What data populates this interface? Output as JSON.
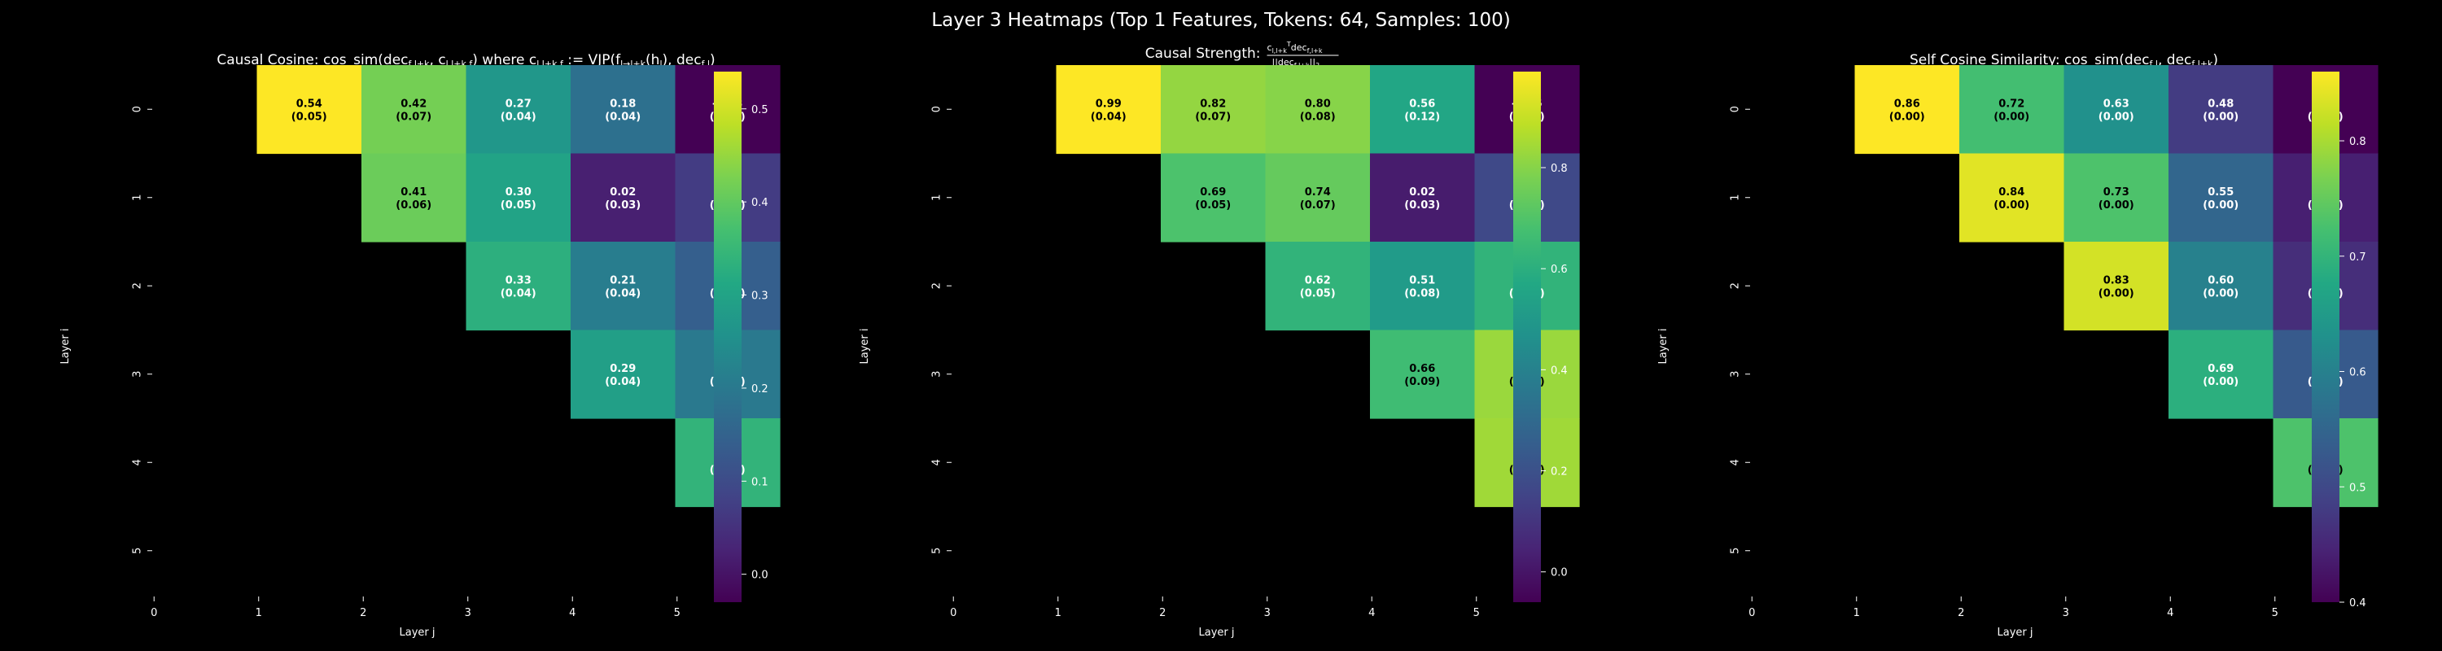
{
  "figure_title": "Layer 3 Heatmaps (Top 1 Features, Tokens: 64, Samples: 100)",
  "chart_data": [
    {
      "type": "heatmap",
      "title": "Causal Cosine: cos_sim(dec_{f,l+k}, c_{l,l+k,f}) where c_{l,l+k,f} := VJP(f_{l→l+k}(h_l), dec_{f,l})",
      "title_parts": [
        {
          "t": "Causal Cosine: cos_sim(dec",
          "s": ""
        },
        {
          "t": "f,l+k",
          "s": "sub"
        },
        {
          "t": ", c",
          "s": ""
        },
        {
          "t": "l,l+k,f",
          "s": "sub"
        },
        {
          "t": ") where c",
          "s": ""
        },
        {
          "t": "l,l+k,f",
          "s": "sub"
        },
        {
          "t": " := VJP(f",
          "s": ""
        },
        {
          "t": "l→l+k",
          "s": "sub"
        },
        {
          "t": "(h",
          "s": ""
        },
        {
          "t": "l",
          "s": "sub"
        },
        {
          "t": "), dec",
          "s": ""
        },
        {
          "t": "f,l",
          "s": "sub"
        },
        {
          "t": ")",
          "s": ""
        }
      ],
      "xlabel": "Layer j",
      "ylabel": "Layer i",
      "x_ticks": [
        "0",
        "1",
        "2",
        "3",
        "4",
        "5"
      ],
      "y_ticks": [
        "0",
        "1",
        "2",
        "3",
        "4",
        "5"
      ],
      "cells": [
        {
          "i": 0,
          "j": 1,
          "value": 0.54,
          "std": 0.05
        },
        {
          "i": 0,
          "j": 2,
          "value": 0.42,
          "std": 0.07
        },
        {
          "i": 0,
          "j": 3,
          "value": 0.27,
          "std": 0.04
        },
        {
          "i": 0,
          "j": 4,
          "value": 0.18,
          "std": 0.04
        },
        {
          "i": 0,
          "j": 5,
          "value": -0.03,
          "std": 0.03
        },
        {
          "i": 1,
          "j": 2,
          "value": 0.41,
          "std": 0.06
        },
        {
          "i": 1,
          "j": 3,
          "value": 0.3,
          "std": 0.05
        },
        {
          "i": 1,
          "j": 4,
          "value": 0.02,
          "std": 0.03
        },
        {
          "i": 1,
          "j": 5,
          "value": 0.07,
          "std": 0.03
        },
        {
          "i": 2,
          "j": 3,
          "value": 0.33,
          "std": 0.04
        },
        {
          "i": 2,
          "j": 4,
          "value": 0.21,
          "std": 0.04
        },
        {
          "i": 2,
          "j": 5,
          "value": 0.14,
          "std": 0.04
        },
        {
          "i": 3,
          "j": 4,
          "value": 0.29,
          "std": 0.04
        },
        {
          "i": 3,
          "j": 5,
          "value": 0.2,
          "std": 0.04
        },
        {
          "i": 4,
          "j": 5,
          "value": 0.34,
          "std": 0.05
        }
      ],
      "vmin": -0.03,
      "vmax": 0.54,
      "colorbar_ticks": [
        "0.0",
        "0.1",
        "0.2",
        "0.3",
        "0.4",
        "0.5"
      ],
      "colorbar_tick_values": [
        0.0,
        0.1,
        0.2,
        0.3,
        0.4,
        0.5
      ],
      "colormap": "viridis"
    },
    {
      "type": "heatmap",
      "title": "Causal Strength: (c_{l,l+k}^T dec_{f,l+k}) / ||dec_{f,l+k}||_2",
      "title_parts": [
        {
          "t": "Causal Strength: ",
          "s": ""
        },
        {
          "t": "frac",
          "s": "frac",
          "num": "c",
          "num_sub": "l,l+k",
          "num_sup": "T",
          "num_rest": "dec",
          "num_rest_sub": "f,l+k",
          "den": "||dec",
          "den_sub": "f,l+k",
          "den_rest": "||",
          "den_rest_sub": "2"
        }
      ],
      "xlabel": "Layer j",
      "ylabel": "Layer i",
      "x_ticks": [
        "0",
        "1",
        "2",
        "3",
        "4",
        "5"
      ],
      "y_ticks": [
        "0",
        "1",
        "2",
        "3",
        "4",
        "5"
      ],
      "cells": [
        {
          "i": 0,
          "j": 1,
          "value": 0.99,
          "std": 0.04
        },
        {
          "i": 0,
          "j": 2,
          "value": 0.82,
          "std": 0.07
        },
        {
          "i": 0,
          "j": 3,
          "value": 0.8,
          "std": 0.08
        },
        {
          "i": 0,
          "j": 4,
          "value": 0.56,
          "std": 0.12
        },
        {
          "i": 0,
          "j": 5,
          "value": -0.06,
          "std": 0.06
        },
        {
          "i": 1,
          "j": 2,
          "value": 0.69,
          "std": 0.05
        },
        {
          "i": 1,
          "j": 3,
          "value": 0.74,
          "std": 0.07
        },
        {
          "i": 1,
          "j": 4,
          "value": 0.02,
          "std": 0.03
        },
        {
          "i": 1,
          "j": 5,
          "value": 0.17,
          "std": 0.08
        },
        {
          "i": 2,
          "j": 3,
          "value": 0.62,
          "std": 0.05
        },
        {
          "i": 2,
          "j": 4,
          "value": 0.51,
          "std": 0.08
        },
        {
          "i": 2,
          "j": 5,
          "value": 0.62,
          "std": 0.16
        },
        {
          "i": 3,
          "j": 4,
          "value": 0.66,
          "std": 0.09
        },
        {
          "i": 3,
          "j": 5,
          "value": 0.83,
          "std": 0.17
        },
        {
          "i": 4,
          "j": 5,
          "value": 0.84,
          "std": 0.09
        }
      ],
      "vmin": -0.06,
      "vmax": 0.99,
      "colorbar_ticks": [
        "0.0",
        "0.2",
        "0.4",
        "0.6",
        "0.8"
      ],
      "colorbar_tick_values": [
        0.0,
        0.2,
        0.4,
        0.6,
        0.8
      ],
      "colormap": "viridis"
    },
    {
      "type": "heatmap",
      "title": "Self Cosine Similarity: cos_sim(dec_{f,l}, dec_{f,l+k})",
      "title_parts": [
        {
          "t": "Self Cosine Similarity: cos_sim(dec",
          "s": ""
        },
        {
          "t": "f,l",
          "s": "sub"
        },
        {
          "t": ", dec",
          "s": ""
        },
        {
          "t": "f,l+k",
          "s": "sub"
        },
        {
          "t": ")",
          "s": ""
        }
      ],
      "xlabel": "Layer j",
      "ylabel": "Layer i",
      "x_ticks": [
        "0",
        "1",
        "2",
        "3",
        "4",
        "5"
      ],
      "y_ticks": [
        "0",
        "1",
        "2",
        "3",
        "4",
        "5"
      ],
      "cells": [
        {
          "i": 0,
          "j": 1,
          "value": 0.86,
          "std": 0.0
        },
        {
          "i": 0,
          "j": 2,
          "value": 0.72,
          "std": 0.0
        },
        {
          "i": 0,
          "j": 3,
          "value": 0.63,
          "std": 0.0
        },
        {
          "i": 0,
          "j": 4,
          "value": 0.48,
          "std": 0.0
        },
        {
          "i": 0,
          "j": 5,
          "value": 0.4,
          "std": 0.0
        },
        {
          "i": 1,
          "j": 2,
          "value": 0.84,
          "std": 0.0
        },
        {
          "i": 1,
          "j": 3,
          "value": 0.73,
          "std": 0.0
        },
        {
          "i": 1,
          "j": 4,
          "value": 0.55,
          "std": 0.0
        },
        {
          "i": 1,
          "j": 5,
          "value": 0.44,
          "std": 0.0
        },
        {
          "i": 2,
          "j": 3,
          "value": 0.83,
          "std": 0.0
        },
        {
          "i": 2,
          "j": 4,
          "value": 0.6,
          "std": 0.0
        },
        {
          "i": 2,
          "j": 5,
          "value": 0.46,
          "std": 0.0
        },
        {
          "i": 3,
          "j": 4,
          "value": 0.69,
          "std": 0.0
        },
        {
          "i": 3,
          "j": 5,
          "value": 0.53,
          "std": 0.0
        },
        {
          "i": 4,
          "j": 5,
          "value": 0.73,
          "std": 0.0
        }
      ],
      "vmin": 0.4,
      "vmax": 0.86,
      "colorbar_ticks": [
        "0.4",
        "0.5",
        "0.6",
        "0.7",
        "0.8"
      ],
      "colorbar_tick_values": [
        0.4,
        0.5,
        0.6,
        0.7,
        0.8
      ],
      "colormap": "viridis"
    }
  ]
}
